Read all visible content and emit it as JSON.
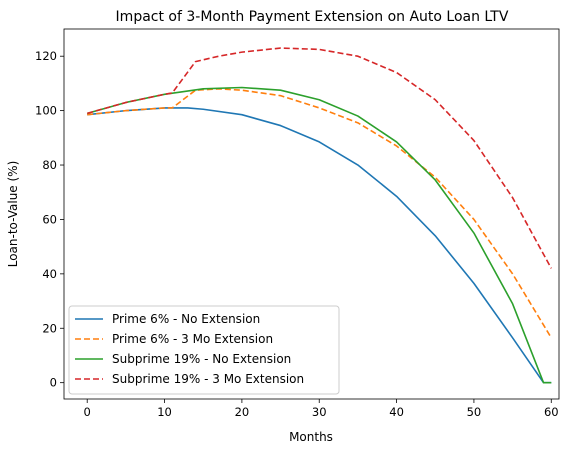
{
  "chart_data": {
    "type": "line",
    "title": "Impact of 3-Month Payment Extension on Auto Loan LTV",
    "xlabel": "Months",
    "ylabel": "Loan-to-Value (%)",
    "xlim": [
      -3,
      61
    ],
    "ylim": [
      -6,
      130
    ],
    "xticks": [
      0,
      10,
      20,
      30,
      40,
      50,
      60
    ],
    "yticks": [
      0,
      20,
      40,
      60,
      80,
      100,
      120
    ],
    "grid": false,
    "legend_position": "lower-left",
    "series": [
      {
        "name": "Prime 6% - No Extension",
        "color": "#1f77b4",
        "dash": "solid",
        "x": [
          0,
          5,
          10,
          13,
          15,
          20,
          25,
          30,
          35,
          40,
          45,
          50,
          55,
          59,
          60
        ],
        "y": [
          98.5,
          100.0,
          101.0,
          101.0,
          100.5,
          98.5,
          94.5,
          88.5,
          80.0,
          68.5,
          54.0,
          36.5,
          16.5,
          0,
          0
        ]
      },
      {
        "name": "Prime 6% - 3 Mo Extension",
        "color": "#ff7f0e",
        "dash": "dashed",
        "x": [
          0,
          5,
          10,
          11,
          14,
          17,
          20,
          25,
          30,
          35,
          40,
          45,
          50,
          55,
          60
        ],
        "y": [
          98.5,
          100.0,
          101.0,
          101.0,
          107.5,
          108.0,
          107.5,
          105.5,
          101.0,
          95.5,
          87.0,
          75.5,
          60.0,
          40.0,
          16.5
        ]
      },
      {
        "name": "Subprime 19% - No Extension",
        "color": "#2ca02c",
        "dash": "solid",
        "x": [
          0,
          5,
          10,
          15,
          20,
          25,
          30,
          35,
          40,
          45,
          50,
          55,
          59,
          60
        ],
        "y": [
          99.0,
          103.0,
          106.0,
          108.0,
          108.5,
          107.5,
          104.0,
          98.0,
          88.5,
          74.5,
          55.0,
          29.0,
          0,
          0
        ]
      },
      {
        "name": "Subprime 19% - 3 Mo Extension",
        "color": "#d62728",
        "dash": "dashed",
        "x": [
          0,
          5,
          10,
          11,
          14,
          17,
          20,
          25,
          30,
          35,
          40,
          45,
          50,
          55,
          60
        ],
        "y": [
          99.0,
          103.0,
          106.0,
          106.5,
          118.0,
          120.0,
          121.5,
          123.0,
          122.5,
          120.0,
          114.0,
          104.0,
          89.0,
          68.0,
          42.0
        ]
      }
    ]
  }
}
